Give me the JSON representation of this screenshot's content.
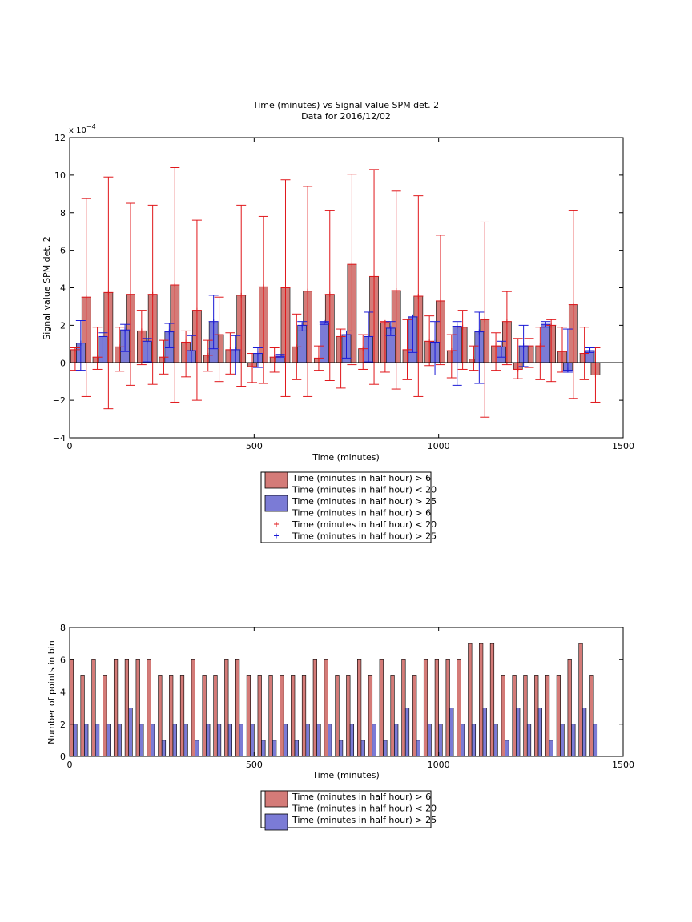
{
  "figure": {
    "title_line1": "Time (minutes) vs Signal value SPM det. 2",
    "title_line2": "Data for 2016/12/02"
  },
  "colors": {
    "red_fill": "#d47b78",
    "blue_fill": "#7b7bd6",
    "red_err": "#e0171b",
    "blue_err": "#1a1ad6",
    "zero_line": "#000000"
  },
  "legend_top": {
    "entries": [
      {
        "kind": "patch",
        "color": "#d47b78",
        "label": "Time (minutes in half hour) > 6"
      },
      {
        "kind": "text",
        "label": "Time (minutes in half hour) < 20"
      },
      {
        "kind": "patch",
        "color": "#7b7bd6",
        "label": "Time (minutes in half hour) > 25"
      },
      {
        "kind": "text",
        "label": "Time (minutes in half hour) > 6"
      },
      {
        "kind": "marker",
        "color": "#e0171b",
        "label": "Time (minutes in half hour) < 20"
      },
      {
        "kind": "marker",
        "color": "#1a1ad6",
        "label": "Time (minutes in half hour) > 25"
      }
    ]
  },
  "legend_bottom": {
    "entries": [
      {
        "kind": "patch",
        "color": "#d47b78",
        "label": "Time (minutes in half hour) > 6"
      },
      {
        "kind": "text",
        "label": "Time (minutes in half hour) < 20"
      },
      {
        "kind": "patch",
        "color": "#7b7bd6",
        "label": "Time (minutes in half hour) > 25"
      }
    ]
  },
  "chart_data": [
    {
      "type": "bar",
      "xlabel": "Time (minutes)",
      "ylabel": "Signal value SPM det. 2",
      "y_exponent_label": "x 10^-4",
      "xlim": [
        0,
        1500
      ],
      "ylim": [
        -4,
        12
      ],
      "xticks": [
        0,
        500,
        1000,
        1500
      ],
      "yticks": [
        -4,
        -2,
        0,
        2,
        4,
        6,
        8,
        10,
        12
      ],
      "series": [
        {
          "name": "Time (minutes in half hour) > 6 / Time (minutes in half hour) < 20",
          "color": "red",
          "x": [
            15,
            45,
            75,
            105,
            135,
            165,
            195,
            225,
            255,
            285,
            315,
            345,
            375,
            405,
            435,
            465,
            495,
            525,
            555,
            585,
            615,
            645,
            675,
            705,
            735,
            765,
            795,
            825,
            855,
            885,
            915,
            945,
            975,
            1005,
            1035,
            1065,
            1095,
            1125,
            1155,
            1185,
            1215,
            1245,
            1275,
            1305,
            1335,
            1365,
            1395,
            1425
          ],
          "values": [
            0.7,
            3.5,
            0.3,
            3.75,
            0.85,
            3.65,
            1.7,
            3.65,
            0.3,
            4.15,
            1.1,
            2.8,
            0.4,
            1.5,
            0.7,
            3.6,
            -0.2,
            4.05,
            0.3,
            4.0,
            0.85,
            3.82,
            0.25,
            3.65,
            1.4,
            5.25,
            0.75,
            4.6,
            2.15,
            3.85,
            0.7,
            3.55,
            1.15,
            3.3,
            0.65,
            1.9,
            0.2,
            2.3,
            0.9,
            2.2,
            -0.35,
            0.9,
            0.9,
            2.0,
            0.6,
            3.1,
            0.5,
            -0.65
          ],
          "err_low": [
            -0.4,
            -1.8,
            -0.35,
            -2.45,
            -0.45,
            -1.2,
            -0.1,
            -1.15,
            -0.6,
            -2.1,
            -0.75,
            -2.0,
            -0.45,
            -1.0,
            -0.6,
            -1.25,
            -1.05,
            -1.1,
            -0.5,
            -1.8,
            -0.9,
            -1.8,
            -0.4,
            -0.95,
            -1.35,
            -0.1,
            -0.35,
            -1.15,
            -0.5,
            -1.4,
            -0.9,
            -1.8,
            -0.15,
            -0.1,
            -0.8,
            -0.35,
            -0.4,
            -2.9,
            -0.4,
            -0.1,
            -0.85,
            -0.25,
            -0.9,
            -1.0,
            -0.5,
            -1.9,
            -0.9,
            -2.1
          ],
          "err_high": [
            0.8,
            8.75,
            1.9,
            9.9,
            1.9,
            8.5,
            2.8,
            8.4,
            1.2,
            10.4,
            1.7,
            7.6,
            1.2,
            3.5,
            1.6,
            8.4,
            0.5,
            7.8,
            0.8,
            9.75,
            2.6,
            9.4,
            0.9,
            8.1,
            1.8,
            10.05,
            1.5,
            10.3,
            2.2,
            9.15,
            2.3,
            8.9,
            2.5,
            6.8,
            1.5,
            2.8,
            0.9,
            7.5,
            1.6,
            3.8,
            1.3,
            1.3,
            1.9,
            2.3,
            1.9,
            8.1,
            1.9,
            0.8
          ]
        },
        {
          "name": "Time (minutes in half hour) > 25",
          "color": "blue",
          "x": [
            30,
            90,
            150,
            210,
            270,
            330,
            390,
            450,
            510,
            570,
            630,
            690,
            750,
            810,
            870,
            930,
            990,
            1050,
            1110,
            1170,
            1230,
            1290,
            1350,
            1410
          ],
          "values": [
            1.05,
            1.4,
            1.75,
            1.15,
            1.65,
            0.65,
            2.2,
            0.7,
            0.5,
            0.35,
            2.0,
            2.15,
            1.5,
            1.4,
            1.85,
            2.45,
            1.1,
            1.95,
            1.65,
            0.85,
            0.9,
            2.05,
            -0.4,
            0.65
          ],
          "err_low": [
            -0.4,
            0.0,
            0.6,
            0.05,
            0.8,
            0.0,
            0.75,
            -0.65,
            -0.25,
            0.3,
            1.7,
            2.05,
            0.25,
            0.05,
            1.45,
            0.55,
            -0.65,
            -1.2,
            -1.1,
            0.3,
            -0.2,
            1.9,
            -0.5,
            0.55
          ],
          "err_high": [
            2.25,
            1.6,
            2.05,
            1.3,
            2.1,
            1.45,
            3.6,
            1.45,
            0.8,
            0.45,
            2.2,
            2.2,
            1.7,
            2.7,
            2.2,
            2.55,
            2.2,
            2.2,
            2.7,
            1.15,
            2.0,
            2.2,
            1.8,
            0.8
          ]
        }
      ]
    },
    {
      "type": "bar",
      "xlabel": "Time (minutes)",
      "ylabel": "Number of points in bin",
      "xlim": [
        0,
        1500
      ],
      "ylim": [
        0,
        8
      ],
      "xticks": [
        0,
        500,
        1000,
        1500
      ],
      "yticks": [
        0,
        2,
        4,
        6,
        8
      ],
      "series": [
        {
          "name": "Time (minutes in half hour) > 6 / Time (minutes in half hour) < 20",
          "color": "red",
          "x": [
            5,
            35,
            65,
            95,
            125,
            155,
            185,
            215,
            245,
            275,
            305,
            335,
            365,
            395,
            425,
            455,
            485,
            515,
            545,
            575,
            605,
            635,
            665,
            695,
            725,
            755,
            785,
            815,
            845,
            875,
            905,
            935,
            965,
            995,
            1025,
            1055,
            1085,
            1115,
            1145,
            1175,
            1205,
            1235,
            1265,
            1295,
            1325,
            1355,
            1385,
            1415
          ],
          "values": [
            6,
            5,
            6,
            5,
            6,
            6,
            6,
            6,
            5,
            5,
            5,
            6,
            5,
            5,
            6,
            6,
            5,
            5,
            5,
            5,
            5,
            5,
            6,
            6,
            5,
            5,
            6,
            5,
            6,
            5,
            6,
            5,
            6,
            6,
            6,
            6,
            7,
            7,
            7,
            5,
            5,
            5,
            5,
            5,
            5,
            6,
            7,
            5
          ]
        },
        {
          "name": "Time (minutes in half hour) > 25",
          "color": "blue",
          "x": [
            15,
            45,
            75,
            105,
            135,
            165,
            195,
            225,
            255,
            285,
            315,
            345,
            375,
            405,
            435,
            465,
            495,
            525,
            555,
            585,
            615,
            645,
            675,
            705,
            735,
            765,
            795,
            825,
            855,
            885,
            915,
            945,
            975,
            1005,
            1035,
            1065,
            1095,
            1125,
            1155,
            1185,
            1215,
            1245,
            1275,
            1305,
            1335,
            1365,
            1395,
            1425
          ],
          "values": [
            2,
            2,
            2,
            2,
            2,
            3,
            2,
            2,
            1,
            2,
            2,
            1,
            2,
            2,
            2,
            2,
            2,
            1,
            1,
            2,
            1,
            2,
            2,
            2,
            1,
            2,
            1,
            2,
            1,
            2,
            3,
            1,
            2,
            2,
            3,
            2,
            2,
            3,
            2,
            1,
            3,
            2,
            3,
            1,
            2,
            2,
            3,
            2
          ]
        }
      ]
    }
  ]
}
